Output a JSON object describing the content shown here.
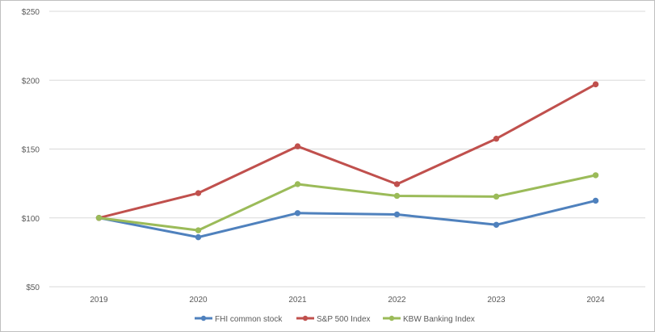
{
  "chart_data": {
    "type": "line",
    "title": "",
    "xlabel": "",
    "ylabel": "",
    "categories": [
      "2019",
      "2020",
      "2021",
      "2022",
      "2023",
      "2024"
    ],
    "y_ticks": [
      "$50",
      "$100",
      "$150",
      "$200",
      "$250"
    ],
    "y_tick_values": [
      50,
      100,
      150,
      200,
      250
    ],
    "ylim": [
      50,
      250
    ],
    "grid": true,
    "legend_position": "bottom",
    "series": [
      {
        "name": "FHI common stock",
        "color": "#4f81bd",
        "values": [
          100,
          86,
          103.5,
          102.5,
          95,
          112.5
        ]
      },
      {
        "name": "S&P 500 Index",
        "color": "#c0504d",
        "values": [
          100,
          118,
          152,
          124.5,
          157.5,
          197
        ]
      },
      {
        "name": "KBW Banking Index",
        "color": "#9bbb59",
        "values": [
          100,
          91,
          124.5,
          116,
          115.5,
          131
        ]
      }
    ]
  }
}
